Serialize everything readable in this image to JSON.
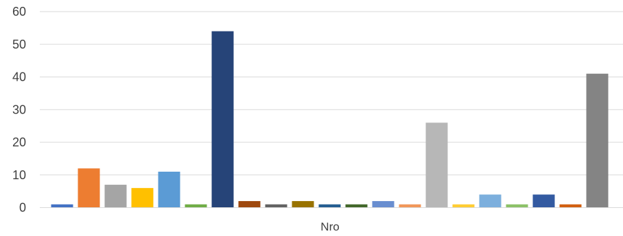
{
  "chart_data": {
    "type": "bar",
    "xlabel": "Nro",
    "ylabel": "",
    "ylim": [
      0,
      60
    ],
    "yticks": [
      0,
      10,
      20,
      30,
      40,
      50,
      60
    ],
    "grid": true,
    "values": [
      1,
      12,
      7,
      6,
      11,
      1,
      54,
      2,
      1,
      2,
      1,
      1,
      2,
      1,
      26,
      1,
      4,
      1,
      4,
      1,
      41
    ],
    "colors": [
      "#4472c4",
      "#ed7d31",
      "#a5a5a5",
      "#ffc000",
      "#5b9bd5",
      "#70ad47",
      "#264478",
      "#9e480e",
      "#636363",
      "#997300",
      "#255e91",
      "#43682b",
      "#698ed0",
      "#f1975a",
      "#b7b7b7",
      "#ffcd33",
      "#7cafdd",
      "#8cc168",
      "#335aa1",
      "#d26012",
      "#848484"
    ]
  }
}
